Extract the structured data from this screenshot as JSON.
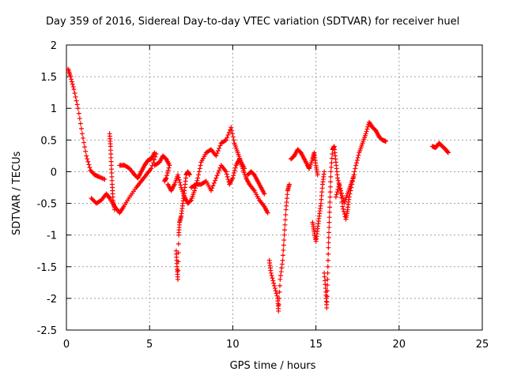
{
  "chart_data": {
    "type": "scatter",
    "title": "Day 359 of 2016, Sidereal Day-to-day VTEC variation (SDTVAR) for receiver huel",
    "xlabel": "GPS time / hours",
    "ylabel": "SDTVAR / TECUs",
    "xlim": [
      0,
      25
    ],
    "ylim": [
      -2.5,
      2
    ],
    "xticks": [
      0,
      5,
      10,
      15,
      20,
      25
    ],
    "xtick_labels": [
      "0",
      "5",
      "10",
      "15",
      "20",
      "25"
    ],
    "yticks": [
      -2.5,
      -2,
      -1.5,
      -1,
      -0.5,
      0,
      0.5,
      1,
      1.5,
      2
    ],
    "ytick_labels": [
      "-2.5",
      "-2",
      "-1.5",
      "-1",
      "-0.5",
      "0",
      "0.5",
      "1",
      "1.5",
      "2"
    ],
    "grid": true,
    "marker": "+",
    "marker_color": "#ff0000",
    "series": [
      {
        "name": "SDTVAR",
        "segments": [
          [
            [
              0.1,
              1.62
            ],
            [
              0.25,
              1.5
            ],
            [
              0.45,
              1.3
            ],
            [
              0.7,
              1.0
            ],
            [
              0.95,
              0.6
            ],
            [
              1.2,
              0.25
            ],
            [
              1.45,
              0.02
            ],
            [
              1.7,
              -0.05
            ],
            [
              1.95,
              -0.08
            ],
            [
              2.3,
              -0.12
            ]
          ],
          [
            [
              1.5,
              -0.42
            ],
            [
              1.8,
              -0.5
            ],
            [
              2.1,
              -0.45
            ],
            [
              2.4,
              -0.35
            ],
            [
              2.6,
              -0.42
            ],
            [
              2.9,
              -0.55
            ],
            [
              3.2,
              -0.65
            ],
            [
              3.45,
              -0.55
            ],
            [
              3.8,
              -0.4
            ],
            [
              4.2,
              -0.25
            ],
            [
              4.5,
              -0.15
            ],
            [
              4.8,
              -0.05
            ],
            [
              5.1,
              0.05
            ],
            [
              5.4,
              0.28
            ]
          ],
          [
            [
              2.6,
              0.6
            ],
            [
              2.65,
              0.4
            ],
            [
              2.7,
              0.1
            ],
            [
              2.75,
              -0.2
            ],
            [
              2.8,
              -0.45
            ],
            [
              2.9,
              -0.6
            ]
          ],
          [
            [
              3.2,
              0.1
            ],
            [
              3.5,
              0.1
            ],
            [
              3.8,
              0.05
            ],
            [
              4.1,
              -0.05
            ],
            [
              4.3,
              -0.1
            ],
            [
              4.5,
              0.0
            ],
            [
              4.7,
              0.1
            ],
            [
              4.9,
              0.18
            ],
            [
              5.1,
              0.2
            ],
            [
              5.3,
              0.3
            ]
          ],
          [
            [
              5.3,
              0.1
            ],
            [
              5.6,
              0.15
            ],
            [
              5.8,
              0.25
            ],
            [
              6.0,
              0.2
            ],
            [
              6.2,
              0.1
            ],
            [
              6.0,
              -0.1
            ],
            [
              5.9,
              -0.15
            ]
          ],
          [
            [
              6.1,
              -0.2
            ],
            [
              6.3,
              -0.3
            ],
            [
              6.5,
              -0.2
            ],
            [
              6.7,
              -0.05
            ],
            [
              6.9,
              -0.25
            ],
            [
              7.1,
              -0.4
            ],
            [
              7.3,
              -0.5
            ],
            [
              7.5,
              -0.45
            ],
            [
              7.7,
              -0.3
            ],
            [
              7.9,
              -0.1
            ],
            [
              8.1,
              0.15
            ],
            [
              8.4,
              0.3
            ],
            [
              8.7,
              0.35
            ],
            [
              9.0,
              0.25
            ],
            [
              9.3,
              0.45
            ],
            [
              9.6,
              0.5
            ],
            [
              9.9,
              0.7
            ],
            [
              10.1,
              0.45
            ],
            [
              10.3,
              0.3
            ],
            [
              10.5,
              0.15
            ],
            [
              10.7,
              0.05
            ]
          ],
          [
            [
              6.6,
              -1.25
            ],
            [
              6.65,
              -1.5
            ],
            [
              6.7,
              -1.7
            ],
            [
              6.75,
              -1.0
            ],
            [
              6.8,
              -0.8
            ],
            [
              6.9,
              -0.7
            ],
            [
              7.0,
              -0.5
            ],
            [
              7.1,
              -0.3
            ],
            [
              7.2,
              -0.05
            ],
            [
              7.3,
              0.0
            ],
            [
              7.4,
              -0.05
            ]
          ],
          [
            [
              7.5,
              -0.25
            ],
            [
              7.8,
              -0.2
            ],
            [
              8.1,
              -0.2
            ],
            [
              8.4,
              -0.15
            ],
            [
              8.7,
              -0.3
            ],
            [
              9.0,
              -0.1
            ],
            [
              9.3,
              0.1
            ],
            [
              9.6,
              0.0
            ],
            [
              9.8,
              -0.2
            ],
            [
              10.0,
              -0.1
            ],
            [
              10.2,
              0.1
            ],
            [
              10.4,
              0.2
            ],
            [
              10.6,
              0.05
            ],
            [
              10.8,
              -0.1
            ],
            [
              11.0,
              -0.2
            ],
            [
              11.3,
              -0.3
            ],
            [
              11.6,
              -0.45
            ],
            [
              11.9,
              -0.55
            ],
            [
              12.1,
              -0.65
            ]
          ],
          [
            [
              10.9,
              -0.05
            ],
            [
              11.1,
              0.0
            ],
            [
              11.3,
              -0.05
            ],
            [
              11.5,
              -0.15
            ],
            [
              11.7,
              -0.25
            ],
            [
              11.9,
              -0.35
            ]
          ],
          [
            [
              12.2,
              -1.4
            ],
            [
              12.3,
              -1.6
            ],
            [
              12.5,
              -1.8
            ],
            [
              12.7,
              -2.0
            ],
            [
              12.75,
              -2.2
            ],
            [
              12.85,
              -1.7
            ],
            [
              13.0,
              -1.4
            ],
            [
              13.1,
              -1.0
            ],
            [
              13.2,
              -0.6
            ],
            [
              13.3,
              -0.3
            ],
            [
              13.4,
              -0.2
            ]
          ],
          [
            [
              13.5,
              0.2
            ],
            [
              13.7,
              0.25
            ],
            [
              13.9,
              0.35
            ],
            [
              14.1,
              0.3
            ],
            [
              14.3,
              0.2
            ],
            [
              14.5,
              0.1
            ],
            [
              14.6,
              0.05
            ],
            [
              14.8,
              0.2
            ],
            [
              14.9,
              0.3
            ],
            [
              15.0,
              0.1
            ],
            [
              15.1,
              -0.05
            ]
          ],
          [
            [
              14.8,
              -0.8
            ],
            [
              14.9,
              -0.95
            ],
            [
              15.0,
              -1.1
            ],
            [
              15.1,
              -0.9
            ],
            [
              15.2,
              -0.7
            ],
            [
              15.3,
              -0.5
            ],
            [
              15.4,
              -0.2
            ],
            [
              15.5,
              0.0
            ]
          ],
          [
            [
              15.5,
              -1.6
            ],
            [
              15.6,
              -1.9
            ],
            [
              15.65,
              -2.15
            ],
            [
              15.7,
              -1.7
            ],
            [
              15.75,
              -1.2
            ],
            [
              15.8,
              -0.8
            ],
            [
              15.85,
              -0.4
            ],
            [
              15.9,
              0.0
            ],
            [
              16.0,
              0.35
            ],
            [
              16.1,
              0.4
            ],
            [
              16.2,
              0.15
            ],
            [
              16.3,
              -0.1
            ],
            [
              16.5,
              -0.3
            ],
            [
              16.7,
              -0.5
            ],
            [
              16.9,
              -0.35
            ],
            [
              17.1,
              -0.2
            ],
            [
              17.3,
              -0.05
            ]
          ],
          [
            [
              16.2,
              -0.4
            ],
            [
              16.4,
              -0.2
            ],
            [
              16.6,
              -0.55
            ],
            [
              16.8,
              -0.75
            ],
            [
              16.9,
              -0.6
            ],
            [
              17.0,
              -0.4
            ],
            [
              17.2,
              -0.15
            ],
            [
              17.4,
              0.1
            ],
            [
              17.6,
              0.3
            ],
            [
              17.8,
              0.45
            ],
            [
              18.0,
              0.6
            ],
            [
              18.2,
              0.78
            ],
            [
              18.4,
              0.7
            ],
            [
              18.6,
              0.65
            ],
            [
              18.8,
              0.55
            ],
            [
              19.0,
              0.5
            ],
            [
              19.2,
              0.48
            ]
          ],
          [
            [
              22.0,
              0.4
            ],
            [
              22.2,
              0.38
            ],
            [
              22.4,
              0.45
            ],
            [
              22.6,
              0.4
            ],
            [
              22.8,
              0.35
            ],
            [
              22.95,
              0.3
            ]
          ]
        ]
      }
    ]
  }
}
